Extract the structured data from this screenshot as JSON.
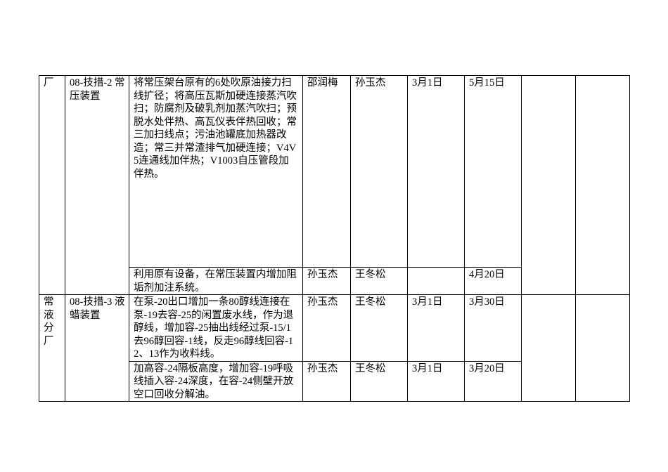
{
  "table": {
    "groups": [
      {
        "unit": "厂",
        "project": "08-技措-2 常压装置",
        "items": [
          {
            "content": "将常压架台原有的6处吹原油接力扫线扩径；将高压瓦斯加硬连接蒸汽吹扫；防腐剂及破乳剂加蒸汽吹扫；预脱水处伴热、高瓦仪表伴热回收；常三加扫线点；污油池罐底加热器改造；常三并常渣排气加硬连接；V4V5连通线加伴热；V1003自压管段加伴热。",
            "owner": "邵润梅",
            "assistant": "孙玉杰",
            "start": "3月1日",
            "end": "5月15日"
          },
          {
            "content": "利用原有设备，在常压装置内增加阻垢剂加注系统。",
            "owner": "孙玉杰",
            "assistant": "王冬松",
            "end": "4月20日"
          }
        ]
      },
      {
        "unit": "常液分厂",
        "project": "08-技措-3 液蜡装置",
        "items": [
          {
            "content": "在泵-20出口增加一条80醇线连接在泵-19去容-25的闲置废水线，作为退醇线，增加容-25抽出线经过泵-15/1去96醇回容-1线，反走96醇线回容-12、13作为收料线。",
            "owner": "孙玉杰",
            "assistant": "王冬松",
            "start": "3月1日",
            "end": "3月30日"
          },
          {
            "content": "加高容-24隔板高度，增加容-19呼吸线插入容-24深度，在容-24侧壁开放空口回收分解油。",
            "owner": "孙玉杰",
            "assistant": "王冬松",
            "start": "3月1日",
            "end": "3月20日"
          }
        ]
      }
    ]
  }
}
